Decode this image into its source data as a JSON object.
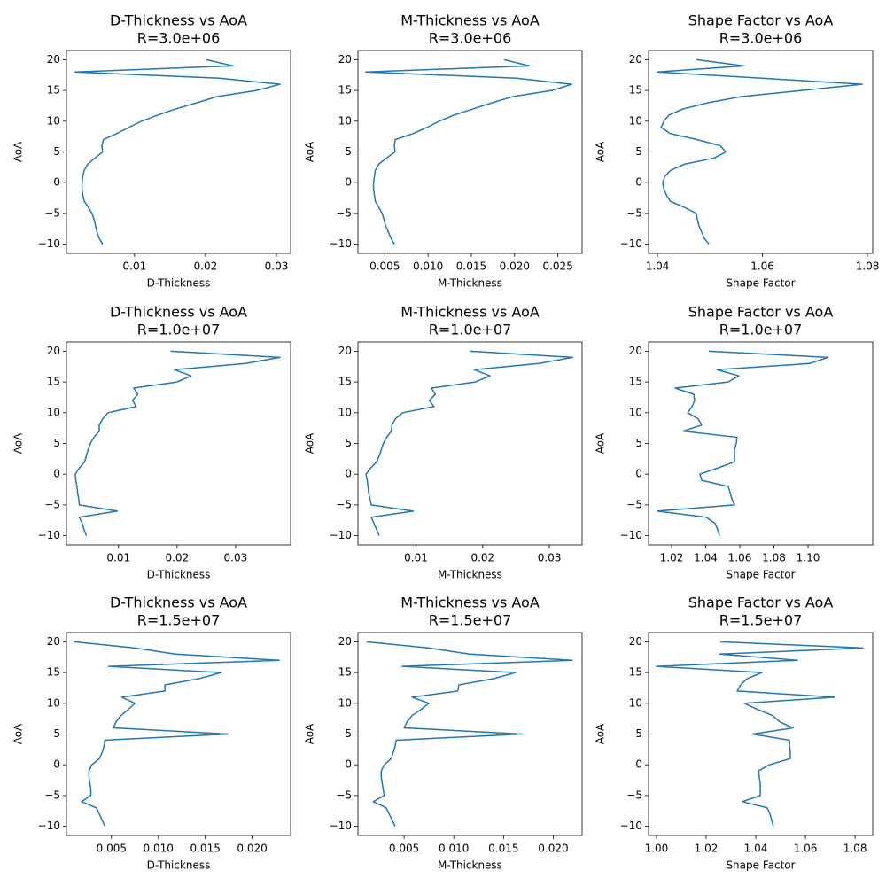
{
  "chart_data": [
    {
      "type": "line",
      "title": "D-Thickness vs AoA",
      "subtitle": "R=3.0e+06",
      "xlabel": "D-Thickness",
      "ylabel": "AoA",
      "color": "#1f77b4",
      "x": [
        0.0055,
        0.005,
        0.0047,
        0.0045,
        0.0043,
        0.004,
        0.0035,
        0.0029,
        0.0027,
        0.0026,
        0.0026,
        0.0027,
        0.0029,
        0.0034,
        0.0044,
        0.0055,
        0.0054,
        0.0056,
        0.0075,
        0.0092,
        0.011,
        0.0133,
        0.0158,
        0.0188,
        0.0216,
        0.0272,
        0.0305,
        0.022,
        0.0016,
        0.0239,
        0.0201
      ],
      "values": [
        -10,
        -9,
        -8,
        -7,
        -6,
        -5,
        -4,
        -3,
        -2,
        -1,
        0,
        1,
        2,
        3,
        4,
        5,
        6,
        7,
        8,
        9,
        10,
        11,
        12,
        13,
        14,
        15,
        16,
        17,
        18,
        19,
        20
      ],
      "xlim": [
        0.0004,
        0.032
      ],
      "xticks": [
        0.01,
        0.02,
        0.03
      ],
      "ylim": [
        -11.5,
        21.5
      ],
      "yticks": [
        {
          "value": -10,
          "label": "−10"
        },
        {
          "value": -5,
          "label": "−5"
        },
        0,
        5,
        10,
        15,
        20
      ]
    },
    {
      "type": "line",
      "title": "M-Thickness vs AoA",
      "subtitle": "R=3.0e+06",
      "xlabel": "M-Thickness",
      "ylabel": "AoA",
      "color": "#1f77b4",
      "x": [
        0.0061,
        0.0057,
        0.0054,
        0.0051,
        0.0049,
        0.0047,
        0.0043,
        0.0039,
        0.0038,
        0.0037,
        0.0037,
        0.0038,
        0.0039,
        0.0043,
        0.0052,
        0.0062,
        0.0061,
        0.0062,
        0.0083,
        0.0099,
        0.0113,
        0.013,
        0.0152,
        0.0174,
        0.0198,
        0.0243,
        0.0266,
        0.0202,
        0.0028,
        0.0217,
        0.0188
      ],
      "values": [
        -10,
        -9,
        -8,
        -7,
        -6,
        -5,
        -4,
        -3,
        -2,
        -1,
        0,
        1,
        2,
        3,
        4,
        5,
        6,
        7,
        8,
        9,
        10,
        11,
        12,
        13,
        14,
        15,
        16,
        17,
        18,
        19,
        20
      ],
      "xlim": [
        0.0019,
        0.0278
      ],
      "xticks": [
        0.005,
        {
          "value": 0.01,
          "label": "0.010"
        },
        0.015,
        {
          "value": 0.02,
          "label": "0.020"
        },
        0.025
      ],
      "ylim": [
        -11.5,
        21.5
      ],
      "yticks": [
        {
          "value": -10,
          "label": "−10"
        },
        {
          "value": -5,
          "label": "−5"
        },
        0,
        5,
        10,
        15,
        20
      ]
    },
    {
      "type": "line",
      "title": "Shape Factor vs AoA",
      "subtitle": "R=3.0e+06",
      "xlabel": "Shape Factor",
      "ylabel": "AoA",
      "color": "#1f77b4",
      "x": [
        1.0498,
        1.0489,
        1.0484,
        1.0479,
        1.0476,
        1.0474,
        1.0451,
        1.0424,
        1.0417,
        1.0412,
        1.041,
        1.0414,
        1.0425,
        1.0451,
        1.0508,
        1.053,
        1.052,
        1.0476,
        1.0424,
        1.0407,
        1.0412,
        1.0422,
        1.0449,
        1.0496,
        1.056,
        1.0675,
        1.079,
        1.0599,
        1.04,
        1.0565,
        1.0474
      ],
      "values": [
        -10,
        -9,
        -8,
        -7,
        -6,
        -5,
        -4,
        -3,
        -2,
        -1,
        0,
        1,
        2,
        3,
        4,
        5,
        6,
        7,
        8,
        9,
        10,
        11,
        12,
        13,
        14,
        15,
        16,
        17,
        18,
        19,
        20
      ],
      "xlim": [
        1.0383,
        1.081
      ],
      "xticks": [
        1.04,
        1.06,
        1.08
      ],
      "ylim": [
        -11.5,
        21.5
      ],
      "yticks": [
        {
          "value": -10,
          "label": "−10"
        },
        {
          "value": -5,
          "label": "−5"
        },
        0,
        5,
        10,
        15,
        20
      ]
    },
    {
      "type": "line",
      "title": "D-Thickness vs AoA",
      "subtitle": "R=1.0e+07",
      "xlabel": "D-Thickness",
      "ylabel": "AoA",
      "color": "#1f77b4",
      "x": [
        0.0045,
        0.0041,
        0.0038,
        0.0033,
        0.0098,
        0.0033,
        0.0032,
        0.003,
        0.0029,
        0.0027,
        0.0026,
        0.0033,
        0.0042,
        0.0045,
        0.0048,
        0.0052,
        0.0058,
        0.0067,
        0.0067,
        0.0073,
        0.0082,
        0.013,
        0.0124,
        0.0133,
        0.0126,
        0.02,
        0.0224,
        0.0195,
        0.0317,
        0.0376,
        0.0189
      ],
      "values": [
        -10,
        -9,
        -8,
        -7,
        -6,
        -5,
        -4,
        -3,
        -2,
        -1,
        0,
        1,
        2,
        3,
        4,
        5,
        6,
        7,
        8,
        9,
        10,
        11,
        12,
        13,
        14,
        15,
        16,
        17,
        18,
        19,
        20
      ],
      "xlim": [
        0.0011,
        0.0394
      ],
      "xticks": [
        0.01,
        0.02,
        0.03
      ],
      "ylim": [
        -11.5,
        21.5
      ],
      "yticks": [
        {
          "value": -10,
          "label": "−10"
        },
        {
          "value": -5,
          "label": "−5"
        },
        0,
        5,
        10,
        15,
        20
      ]
    },
    {
      "type": "line",
      "title": "M-Thickness vs AoA",
      "subtitle": "R=1.0e+07",
      "xlabel": "M-Thickness",
      "ylabel": "AoA",
      "color": "#1f77b4",
      "x": [
        0.0045,
        0.0041,
        0.0037,
        0.0033,
        0.0096,
        0.0033,
        0.0031,
        0.0029,
        0.0028,
        0.0027,
        0.0025,
        0.0032,
        0.0041,
        0.0045,
        0.0048,
        0.0051,
        0.0056,
        0.0063,
        0.0064,
        0.0069,
        0.008,
        0.0127,
        0.012,
        0.0129,
        0.0123,
        0.0189,
        0.0211,
        0.0187,
        0.0284,
        0.0335,
        0.0181
      ],
      "values": [
        -10,
        -9,
        -8,
        -7,
        -6,
        -5,
        -4,
        -3,
        -2,
        -1,
        0,
        1,
        2,
        3,
        4,
        5,
        6,
        7,
        8,
        9,
        10,
        11,
        12,
        13,
        14,
        15,
        16,
        17,
        18,
        19,
        20
      ],
      "xlim": [
        0.0013,
        0.0349
      ],
      "xticks": [
        0.01,
        0.02,
        0.03
      ],
      "ylim": [
        -11.5,
        21.5
      ],
      "yticks": [
        {
          "value": -10,
          "label": "−10"
        },
        {
          "value": -5,
          "label": "−5"
        },
        0,
        5,
        10,
        15,
        20
      ]
    },
    {
      "type": "line",
      "title": "Shape Factor vs AoA",
      "subtitle": "R=1.0e+07",
      "xlabel": "Shape Factor",
      "ylabel": "AoA",
      "color": "#1f77b4",
      "x": [
        1.0481,
        1.047,
        1.0455,
        1.0403,
        1.0117,
        1.0569,
        1.0553,
        1.0543,
        1.0532,
        1.0377,
        1.0366,
        1.047,
        1.0569,
        1.0569,
        1.0569,
        1.0579,
        1.0584,
        1.0268,
        1.0377,
        1.0356,
        1.0294,
        1.032,
        1.0335,
        1.033,
        1.0221,
        1.0532,
        1.0595,
        1.0465,
        1.101,
        1.1117,
        1.0418
      ],
      "values": [
        -10,
        -9,
        -8,
        -7,
        -6,
        -5,
        -4,
        -3,
        -2,
        -1,
        0,
        1,
        2,
        3,
        4,
        5,
        6,
        7,
        8,
        9,
        10,
        11,
        12,
        13,
        14,
        15,
        16,
        17,
        18,
        19,
        20
      ],
      "xlim": [
        1.0065,
        1.1379
      ],
      "xticks": [
        1.02,
        1.04,
        1.06,
        1.08,
        {
          "value": 1.1,
          "label": "1.10"
        }
      ],
      "ylim": [
        -11.5,
        21.5
      ],
      "yticks": [
        {
          "value": -10,
          "label": "−10"
        },
        {
          "value": -5,
          "label": "−5"
        },
        0,
        5,
        10,
        15,
        20
      ]
    },
    {
      "type": "line",
      "title": "D-Thickness vs AoA",
      "subtitle": "R=1.5e+07",
      "xlabel": "D-Thickness",
      "ylabel": "AoA",
      "color": "#1f77b4",
      "x": [
        0.0043,
        0.004,
        0.0037,
        0.0034,
        0.0018,
        0.0028,
        0.0028,
        0.0027,
        0.0026,
        0.0026,
        0.0029,
        0.0037,
        0.004,
        0.0042,
        0.0043,
        0.0174,
        0.0052,
        0.0055,
        0.006,
        0.0068,
        0.0075,
        0.0061,
        0.0107,
        0.0107,
        0.0143,
        0.0167,
        0.0047,
        0.0229,
        0.0118,
        0.0075,
        0.001
      ],
      "values": [
        -10,
        -9,
        -8,
        -7,
        -6,
        -5,
        -4,
        -3,
        -2,
        -1,
        0,
        1,
        2,
        3,
        4,
        5,
        6,
        7,
        8,
        9,
        10,
        11,
        12,
        13,
        14,
        15,
        16,
        17,
        18,
        19,
        20
      ],
      "xlim": [
        0.0002,
        0.0241
      ],
      "xticks": [
        0.005,
        {
          "value": 0.01,
          "label": "0.010"
        },
        0.015,
        {
          "value": 0.02,
          "label": "0.020"
        }
      ],
      "ylim": [
        -11.5,
        21.5
      ],
      "yticks": [
        {
          "value": -10,
          "label": "−10"
        },
        {
          "value": -5,
          "label": "−5"
        },
        0,
        5,
        10,
        15,
        20
      ]
    },
    {
      "type": "line",
      "title": "M-Thickness vs AoA",
      "subtitle": "R=1.5e+07",
      "xlabel": "M-Thickness",
      "ylabel": "AoA",
      "color": "#1f77b4",
      "x": [
        0.0041,
        0.0038,
        0.0035,
        0.0032,
        0.0019,
        0.003,
        0.0029,
        0.0028,
        0.0027,
        0.0027,
        0.003,
        0.0037,
        0.0039,
        0.0041,
        0.0042,
        0.0169,
        0.005,
        0.0053,
        0.0058,
        0.0067,
        0.0075,
        0.0058,
        0.0104,
        0.0105,
        0.014,
        0.0162,
        0.0048,
        0.0219,
        0.0116,
        0.0075,
        0.0012
      ],
      "values": [
        -10,
        -9,
        -8,
        -7,
        -6,
        -5,
        -4,
        -3,
        -2,
        -1,
        0,
        1,
        2,
        3,
        4,
        5,
        6,
        7,
        8,
        9,
        10,
        11,
        12,
        13,
        14,
        15,
        16,
        17,
        18,
        19,
        20
      ],
      "xlim": [
        0.00036,
        0.0229
      ],
      "xticks": [
        0.005,
        {
          "value": 0.01,
          "label": "0.010"
        },
        0.015,
        {
          "value": 0.02,
          "label": "0.020"
        }
      ],
      "ylim": [
        -11.5,
        21.5
      ],
      "yticks": [
        {
          "value": -10,
          "label": "−10"
        },
        {
          "value": -5,
          "label": "−5"
        },
        0,
        5,
        10,
        15,
        20
      ]
    },
    {
      "type": "line",
      "title": "Shape Factor vs AoA",
      "subtitle": "R=1.5e+07",
      "xlabel": "Shape Factor",
      "ylabel": "AoA",
      "color": "#1f77b4",
      "x": [
        1.0471,
        1.0464,
        1.0457,
        1.0446,
        1.0346,
        1.0418,
        1.0418,
        1.0418,
        1.0414,
        1.0411,
        1.0454,
        1.0539,
        1.0539,
        1.0536,
        1.0536,
        1.0386,
        1.055,
        1.0496,
        1.0468,
        1.0407,
        1.0354,
        1.0718,
        1.0325,
        1.0339,
        1.0364,
        1.0425,
        1.0,
        1.0568,
        1.0254,
        1.0832,
        1.0257
      ],
      "values": [
        -10,
        -9,
        -8,
        -7,
        -6,
        -5,
        -4,
        -3,
        -2,
        -1,
        0,
        1,
        2,
        3,
        4,
        5,
        6,
        7,
        8,
        9,
        10,
        11,
        12,
        13,
        14,
        15,
        16,
        17,
        18,
        19,
        20
      ],
      "xlim": [
        0.9968,
        1.0871
      ],
      "xticks": [
        {
          "value": 1,
          "label": "1.00"
        },
        1.02,
        1.04,
        1.06,
        1.08
      ],
      "ylim": [
        -11.5,
        21.5
      ],
      "yticks": [
        {
          "value": -10,
          "label": "−10"
        },
        {
          "value": -5,
          "label": "−5"
        },
        0,
        5,
        10,
        15,
        20
      ]
    }
  ]
}
